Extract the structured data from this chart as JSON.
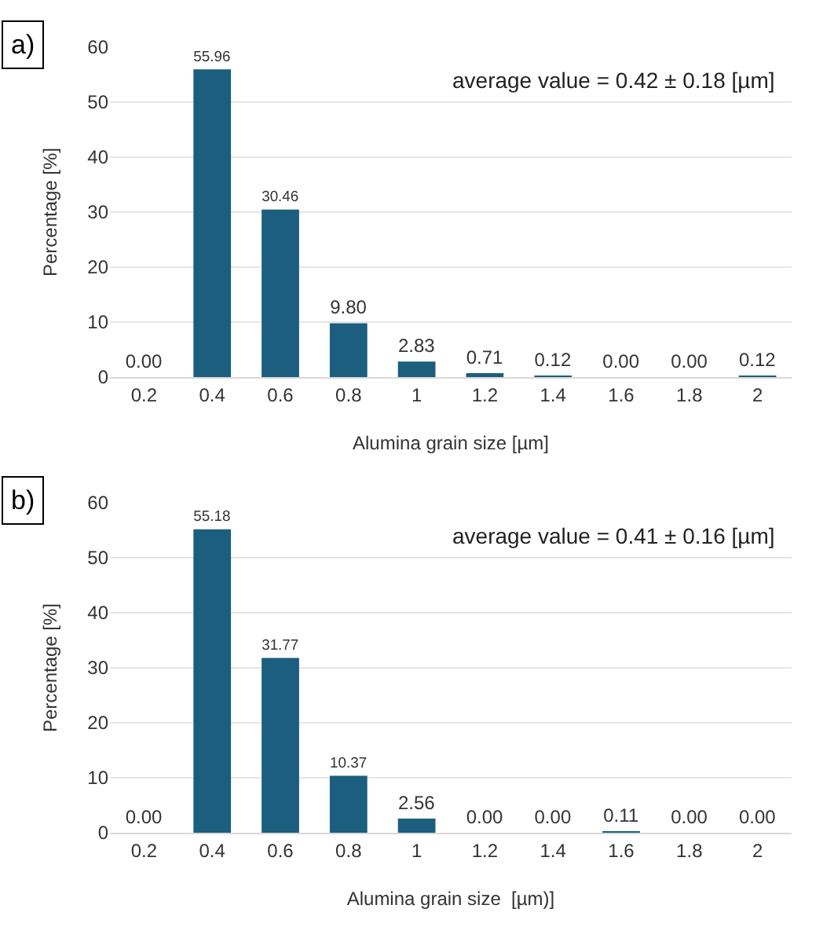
{
  "chart_data": [
    {
      "type": "bar",
      "categories": [
        "0.2",
        "0.4",
        "0.6",
        "0.8",
        "1",
        "1.2",
        "1.4",
        "1.6",
        "1.8",
        "2"
      ],
      "values": [
        0.0,
        55.96,
        30.46,
        9.8,
        2.83,
        0.71,
        0.12,
        0.0,
        0.0,
        0.12
      ],
      "value_labels": [
        "0.00",
        "55.96",
        "30.46",
        "9.80",
        "2.83",
        "0.71",
        "0.12",
        "0.00",
        "0.00",
        "0.12"
      ],
      "color": "#1b5e7e",
      "xlabel": "Alumina grain size [µm]",
      "ylabel": "Percentage [%]",
      "ylim": [
        0,
        60
      ],
      "yticks": [
        0,
        10,
        20,
        30,
        40,
        50,
        60
      ],
      "grid": "y",
      "annotations": [
        "a)",
        "average value = 0.42 ± 0.18 [µm]"
      ]
    },
    {
      "type": "bar",
      "categories": [
        "0.2",
        "0.4",
        "0.6",
        "0.8",
        "1",
        "1.2",
        "1.4",
        "1.6",
        "1.8",
        "2"
      ],
      "values": [
        0.0,
        55.18,
        31.77,
        10.37,
        2.56,
        0.0,
        0.0,
        0.11,
        0.0,
        0.0
      ],
      "value_labels": [
        "0.00",
        "55.18",
        "31.77",
        "10.37",
        "2.56",
        "0.00",
        "0.00",
        "0.11",
        "0.00",
        "0.00"
      ],
      "color": "#1b5e7e",
      "xlabel": "Alumina grain size  [µm)]",
      "ylabel": "Percentage [%]",
      "ylim": [
        0,
        60
      ],
      "yticks": [
        0,
        10,
        20,
        30,
        40,
        50,
        60
      ],
      "grid": "y",
      "annotations": [
        "b)",
        "average value = 0.41 ± 0.16 [µm]"
      ]
    }
  ]
}
